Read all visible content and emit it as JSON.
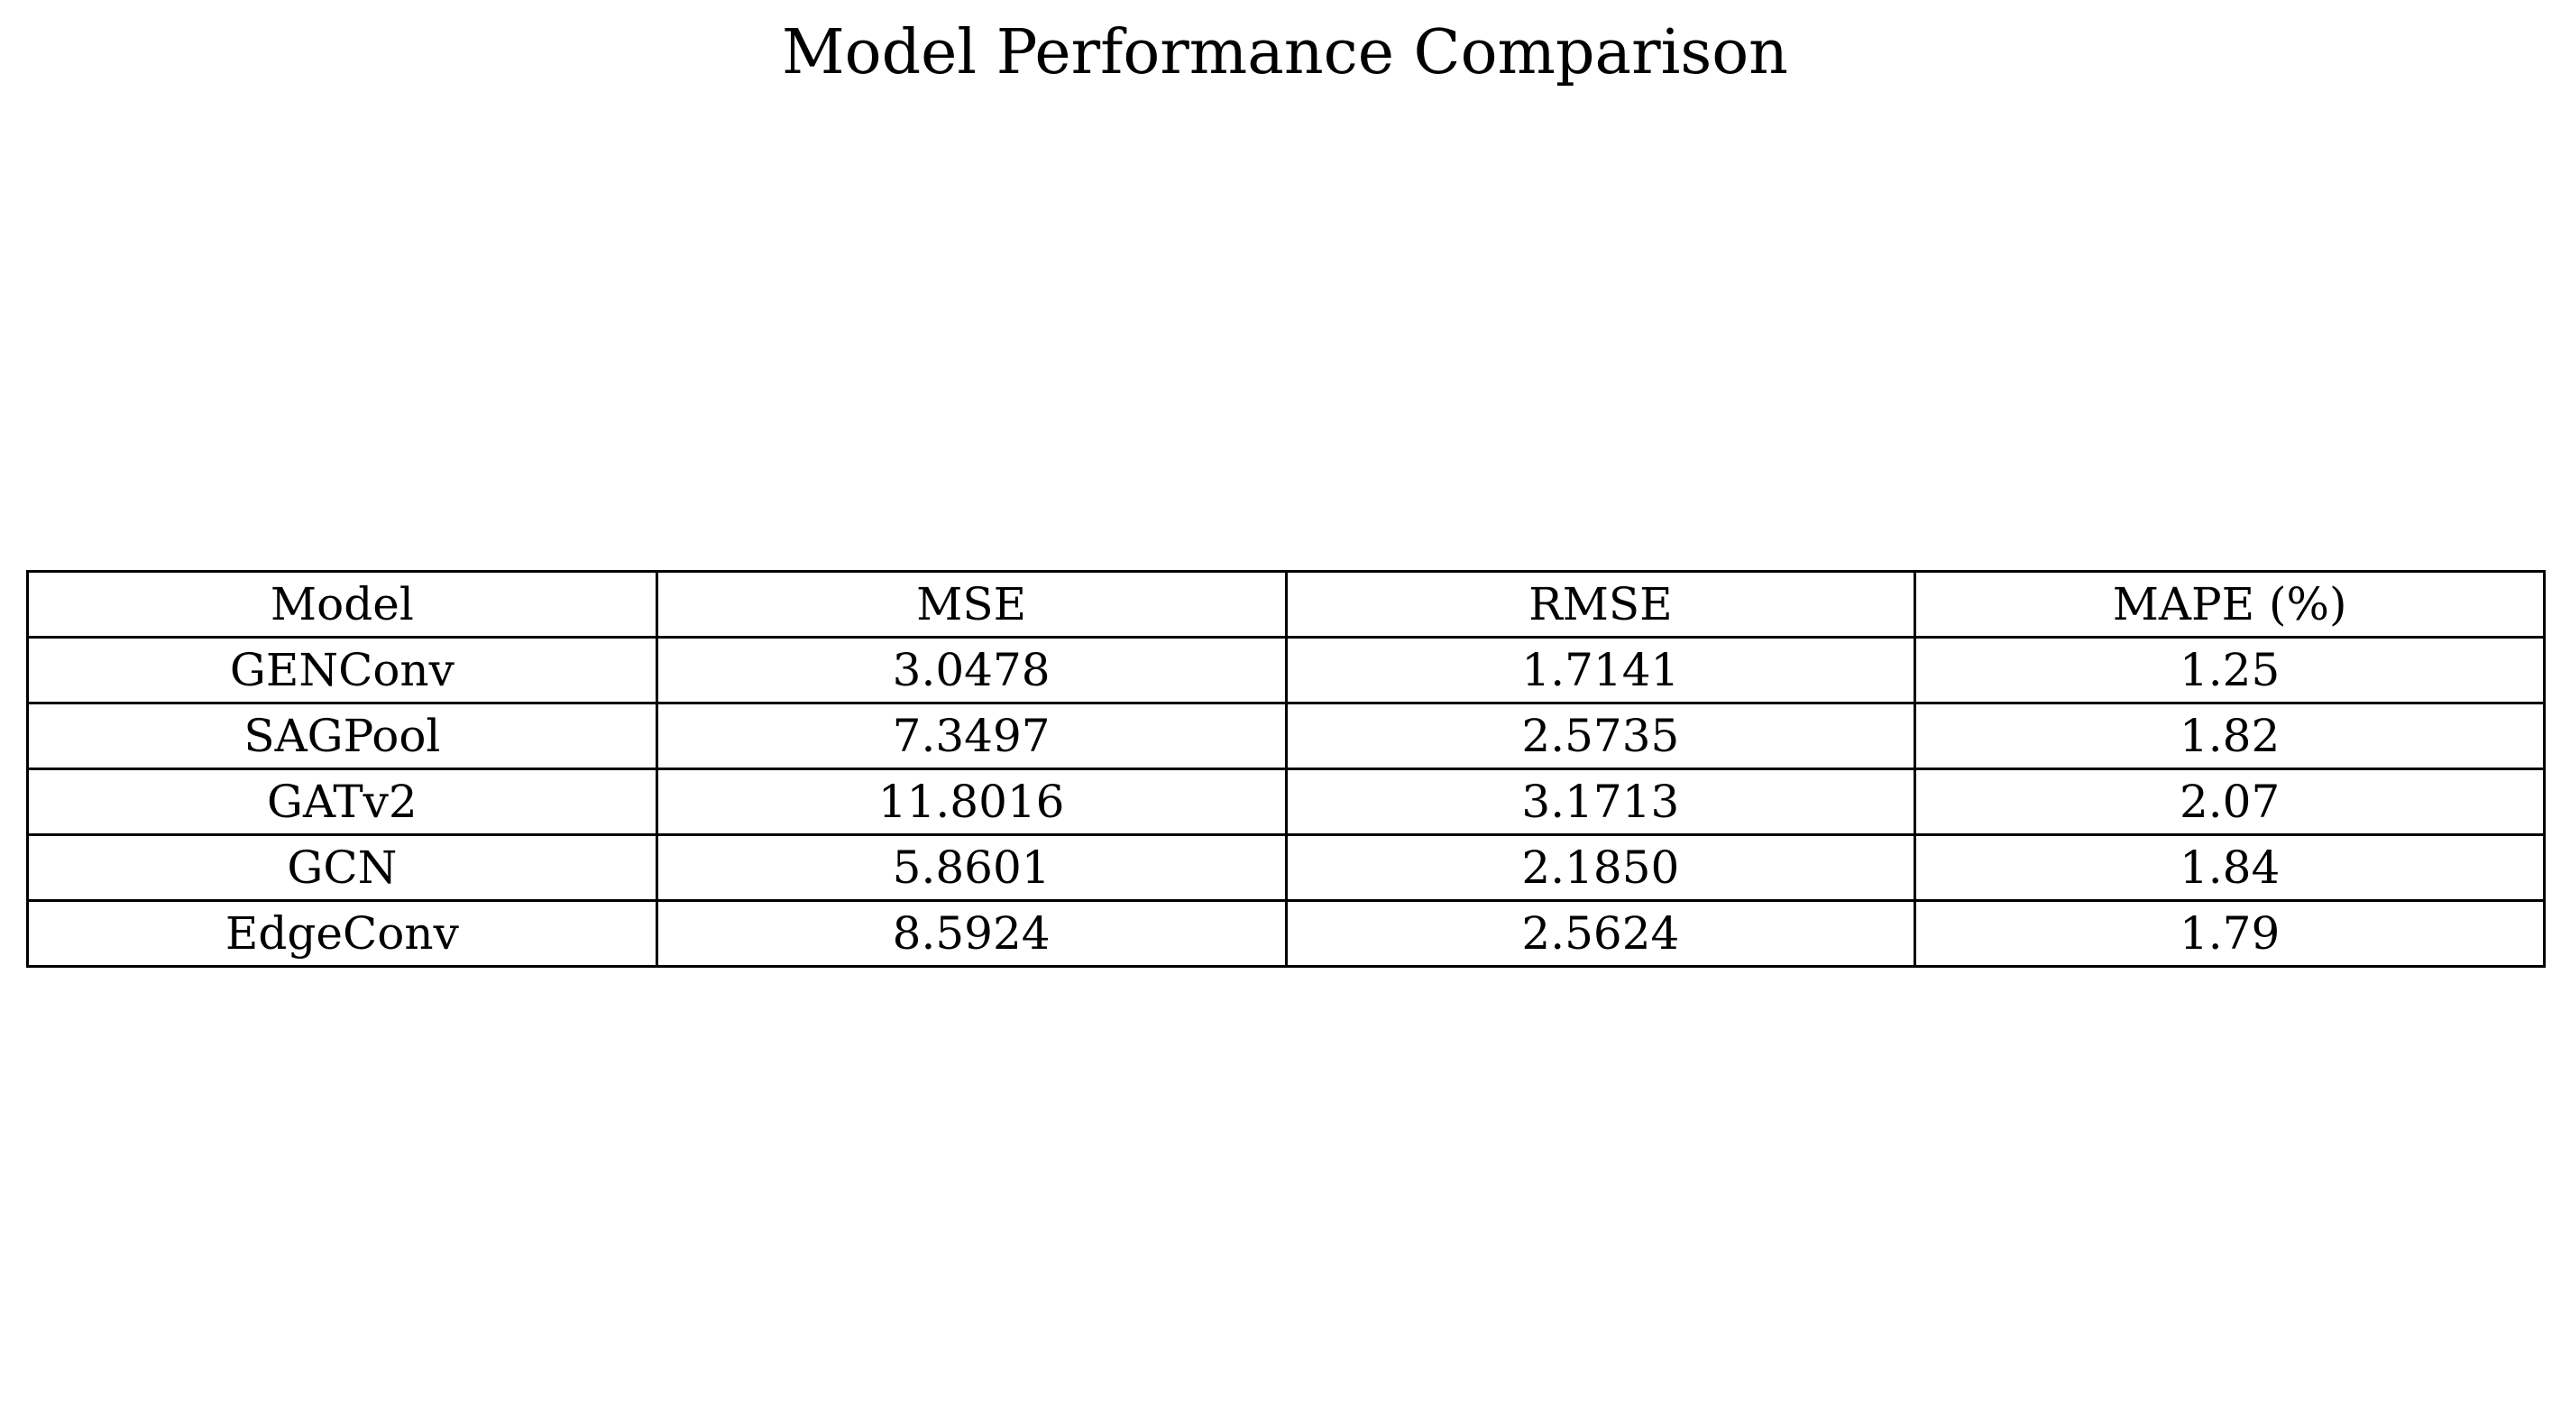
{
  "chart_data": {
    "type": "table",
    "title": "Model Performance Comparison",
    "columns": [
      "Model",
      "MSE",
      "RMSE",
      "MAPE (%)"
    ],
    "rows": [
      [
        "GENConv",
        "3.0478",
        "1.7141",
        "1.25"
      ],
      [
        "SAGPool",
        "7.3497",
        "2.5735",
        "1.82"
      ],
      [
        "GATv2",
        "11.8016",
        "3.1713",
        "2.07"
      ],
      [
        "GCN",
        "5.8601",
        "2.1850",
        "1.84"
      ],
      [
        "EdgeConv",
        "8.5924",
        "2.5624",
        "1.79"
      ]
    ],
    "colors": {
      "background": "#ffffff",
      "text": "#000000",
      "border": "#000000"
    }
  }
}
